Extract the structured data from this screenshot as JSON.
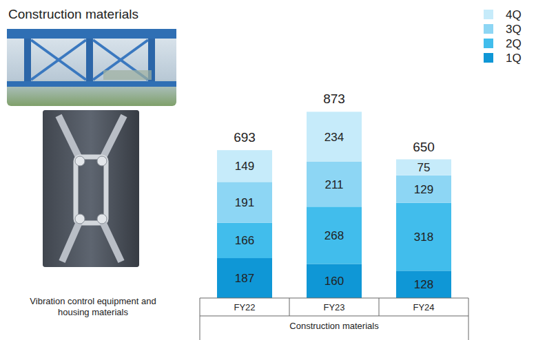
{
  "chart_data": {
    "type": "bar",
    "title": "Construction materials",
    "categories": [
      "FY22",
      "FY23",
      "FY24"
    ],
    "xlabel": "Construction materials",
    "series": [
      {
        "name": "1Q",
        "color": "#0f97d6",
        "values": [
          187,
          160,
          128
        ]
      },
      {
        "name": "2Q",
        "color": "#41bdec",
        "values": [
          166,
          268,
          318
        ]
      },
      {
        "name": "3Q",
        "color": "#8dd6f4",
        "values": [
          191,
          211,
          129
        ]
      },
      {
        "name": "4Q",
        "color": "#c6ebfa",
        "values": [
          149,
          234,
          75
        ]
      }
    ],
    "totals": [
      693,
      873,
      650
    ],
    "annotations": [
      "Vibration control equipment and housing materials"
    ],
    "ylim": [
      0,
      1000
    ],
    "stacked": true,
    "data_labels": true,
    "tick_labels": "x",
    "grid": false,
    "legend": "top-right"
  }
}
